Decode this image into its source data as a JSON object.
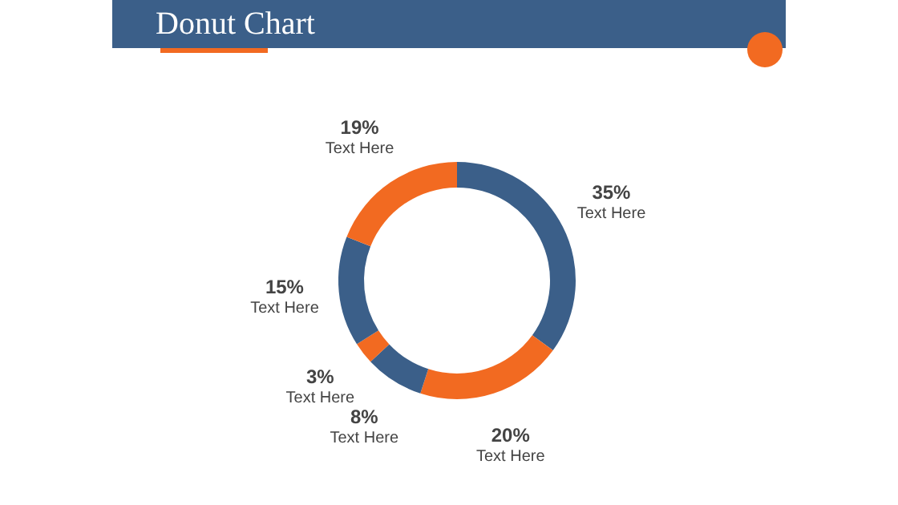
{
  "chart_data": {
    "type": "donut",
    "title": "Donut Chart",
    "categories": [
      "Text Here",
      "Text Here",
      "Text Here",
      "Text Here",
      "Text Here",
      "Text Here"
    ],
    "values": [
      35,
      20,
      8,
      3,
      15,
      19
    ],
    "value_labels": [
      "35%",
      "20%",
      "8%",
      "3%",
      "15%",
      "19%"
    ],
    "colors": [
      "#3b5f89",
      "#f26a21",
      "#3b5f89",
      "#f26a21",
      "#3b5f89",
      "#f26a21"
    ]
  }
}
